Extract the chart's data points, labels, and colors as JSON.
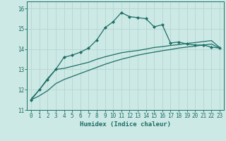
{
  "xlabel": "Humidex (Indice chaleur)",
  "background_color": "#cce9e6",
  "grid_color": "#b8d8d4",
  "line_color": "#1e6e65",
  "xlim": [
    -0.5,
    23.5
  ],
  "ylim": [
    11.0,
    16.35
  ],
  "yticks": [
    11,
    12,
    13,
    14,
    15,
    16
  ],
  "xticks": [
    0,
    1,
    2,
    3,
    4,
    5,
    6,
    7,
    8,
    9,
    10,
    11,
    12,
    13,
    14,
    15,
    16,
    17,
    18,
    19,
    20,
    21,
    22,
    23
  ],
  "series1_x": [
    0,
    1,
    2,
    3,
    4,
    5,
    6,
    7,
    8,
    9,
    10,
    11,
    12,
    13,
    14,
    15,
    16,
    17,
    18,
    19,
    20,
    21,
    22,
    23
  ],
  "series1_y": [
    11.5,
    12.0,
    12.5,
    13.0,
    13.6,
    13.7,
    13.85,
    14.05,
    14.45,
    15.05,
    15.35,
    15.8,
    15.6,
    15.55,
    15.5,
    15.1,
    15.2,
    14.3,
    14.35,
    14.25,
    14.2,
    14.2,
    14.1,
    14.05
  ],
  "series2_x": [
    0,
    1,
    2,
    3,
    4,
    5,
    6,
    7,
    8,
    9,
    10,
    11,
    12,
    13,
    14,
    15,
    16,
    17,
    18,
    19,
    20,
    21,
    22,
    23
  ],
  "series2_y": [
    11.55,
    12.0,
    12.55,
    13.0,
    13.05,
    13.15,
    13.25,
    13.35,
    13.5,
    13.62,
    13.72,
    13.82,
    13.88,
    13.93,
    14.0,
    14.08,
    14.12,
    14.18,
    14.22,
    14.28,
    14.32,
    14.37,
    14.42,
    14.08
  ],
  "series3_x": [
    0,
    1,
    2,
    3,
    4,
    5,
    6,
    7,
    8,
    9,
    10,
    11,
    12,
    13,
    14,
    15,
    16,
    17,
    18,
    19,
    20,
    21,
    22,
    23
  ],
  "series3_y": [
    11.5,
    11.7,
    11.95,
    12.3,
    12.5,
    12.65,
    12.8,
    12.95,
    13.1,
    13.25,
    13.38,
    13.5,
    13.6,
    13.7,
    13.78,
    13.85,
    13.92,
    13.98,
    14.05,
    14.1,
    14.15,
    14.2,
    14.25,
    14.05
  ]
}
